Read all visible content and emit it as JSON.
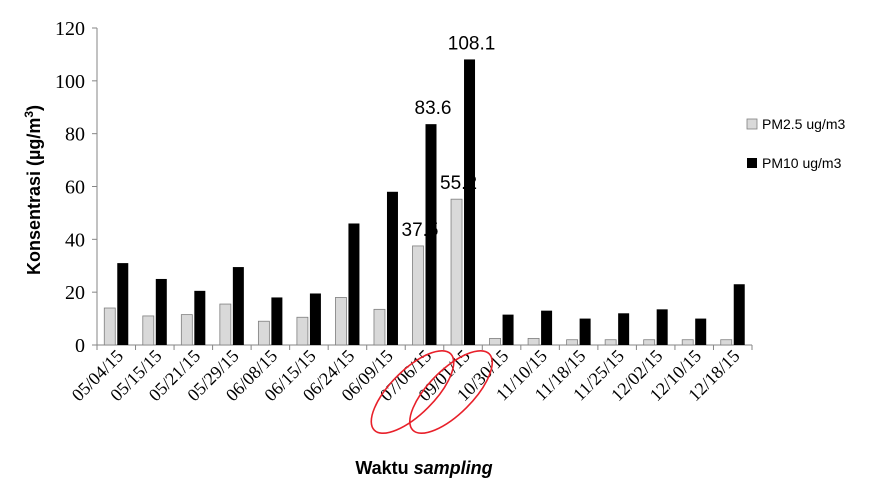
{
  "chart_data": {
    "type": "bar",
    "categories": [
      "05/04/15",
      "05/15/15",
      "05/21/15",
      "05/29/15",
      "06/08/15",
      "06/15/15",
      "06/24/15",
      "06/09/15",
      "07/06/15",
      "09/01/15",
      "10/30/15",
      "11/10/15",
      "11/18/15",
      "11/25/15",
      "12/02/15",
      "12/10/15",
      "12/18/15"
    ],
    "series": [
      {
        "name": "PM2.5 ug/m3",
        "color": "#d9d9d9",
        "values": [
          14,
          11,
          11.5,
          15.5,
          9,
          10.5,
          18,
          13.5,
          37.5,
          55.2,
          2.5,
          2.5,
          2,
          2,
          2,
          2,
          2
        ]
      },
      {
        "name": "PM10 ug/m3",
        "color": "#000000",
        "values": [
          31,
          25,
          20.5,
          29.5,
          18,
          19.5,
          46,
          58,
          83.6,
          108.1,
          11.5,
          13,
          10,
          12,
          13.5,
          10,
          23
        ]
      }
    ],
    "data_labels": [
      {
        "series": 0,
        "index": 8,
        "text": "37.5"
      },
      {
        "series": 0,
        "index": 9,
        "text": "55.2"
      },
      {
        "series": 1,
        "index": 8,
        "text": "83.6"
      },
      {
        "series": 1,
        "index": 9,
        "text": "108.1"
      }
    ],
    "highlighted_categories": [
      8,
      9
    ],
    "highlight_color": "#e8202a",
    "ylabel_text": "Konsentrasi  (µg/m",
    "ylabel_sup": "3",
    "ylabel_end": ")",
    "xlabel_main": "Waktu ",
    "xlabel_italic": "sampling",
    "ylim": [
      0,
      120
    ],
    "yticks": [
      "0",
      "20",
      "40",
      "60",
      "80",
      "100",
      "120"
    ],
    "legend_position": "right",
    "grid": false
  }
}
